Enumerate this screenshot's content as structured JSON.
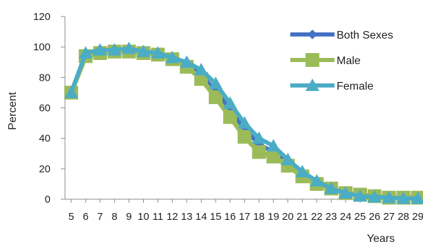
{
  "chart_data": {
    "type": "line",
    "xlabel": "Years",
    "ylabel": "Percent",
    "ylim": [
      0,
      120
    ],
    "yticks": [
      0,
      20,
      40,
      60,
      80,
      100,
      120
    ],
    "grid": false,
    "legend_position": "right",
    "x": [
      5,
      6,
      7,
      8,
      9,
      10,
      11,
      12,
      13,
      14,
      15,
      16,
      17,
      18,
      19,
      20,
      21,
      22,
      23,
      24,
      25,
      26,
      27,
      28,
      29
    ],
    "x_tick_labels": [
      "5",
      "6",
      "7",
      "8",
      "9",
      "10",
      "11",
      "12",
      "13",
      "14",
      "15",
      "16",
      "17",
      "18",
      "19",
      "20",
      "21",
      "22",
      "23",
      "24",
      "25",
      "26",
      "27",
      "28",
      "29"
    ],
    "series": [
      {
        "name": "Both Sexes",
        "color": "#4472C4",
        "marker": "diamond",
        "values": [
          70,
          95,
          97,
          98,
          98,
          97,
          96,
          93,
          88,
          82,
          71,
          59,
          46,
          36,
          31,
          24,
          16,
          11,
          7,
          4,
          2,
          1,
          1,
          0.5,
          0.5
        ]
      },
      {
        "name": "Male",
        "color": "#9BBB59",
        "marker": "square",
        "values": [
          70,
          94,
          96,
          97,
          97,
          96,
          95,
          92,
          87,
          79,
          67,
          54,
          41,
          31,
          28,
          22,
          15,
          10,
          7,
          4,
          3,
          2,
          1,
          1,
          1
        ]
      },
      {
        "name": "Female",
        "color": "#4BACC6",
        "marker": "triangle",
        "values": [
          70,
          96,
          98,
          98,
          99,
          97,
          96,
          93,
          90,
          85,
          76,
          63,
          50,
          40,
          35,
          26,
          18,
          12,
          7,
          4,
          2,
          1.5,
          1,
          0.5,
          0.5
        ]
      }
    ]
  }
}
